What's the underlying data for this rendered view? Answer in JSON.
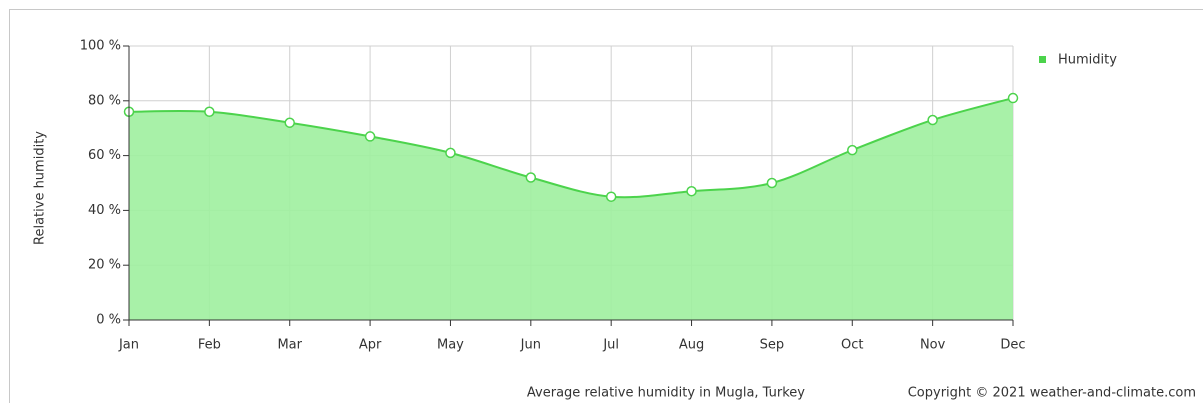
{
  "chart_data": {
    "type": "area",
    "x_label": "Relative humidity",
    "footer": "Average relative humidity in Mugla, Turkey",
    "copyright": "Copyright © 2021  weather-and-climate.com",
    "categories": [
      "Jan",
      "Feb",
      "Mar",
      "Apr",
      "May",
      "Jun",
      "Jul",
      "Aug",
      "Sep",
      "Oct",
      "Nov",
      "Dec"
    ],
    "series": [
      {
        "name": "Humidity",
        "color": "#4cd34c",
        "fill": "#9eef9e",
        "values": [
          76,
          76,
          72,
          67,
          61,
          52,
          45,
          47,
          50,
          62,
          73,
          81
        ]
      }
    ],
    "ylim": [
      0,
      100
    ],
    "yticks": [
      {
        "value": 0,
        "label": "0 %"
      },
      {
        "value": 20,
        "label": "20 %"
      },
      {
        "value": 40,
        "label": "40 %"
      },
      {
        "value": 60,
        "label": "60 %"
      },
      {
        "value": 80,
        "label": "80 %"
      },
      {
        "value": 100,
        "label": "100 %"
      }
    ],
    "grid": true,
    "legend": "top-right"
  }
}
